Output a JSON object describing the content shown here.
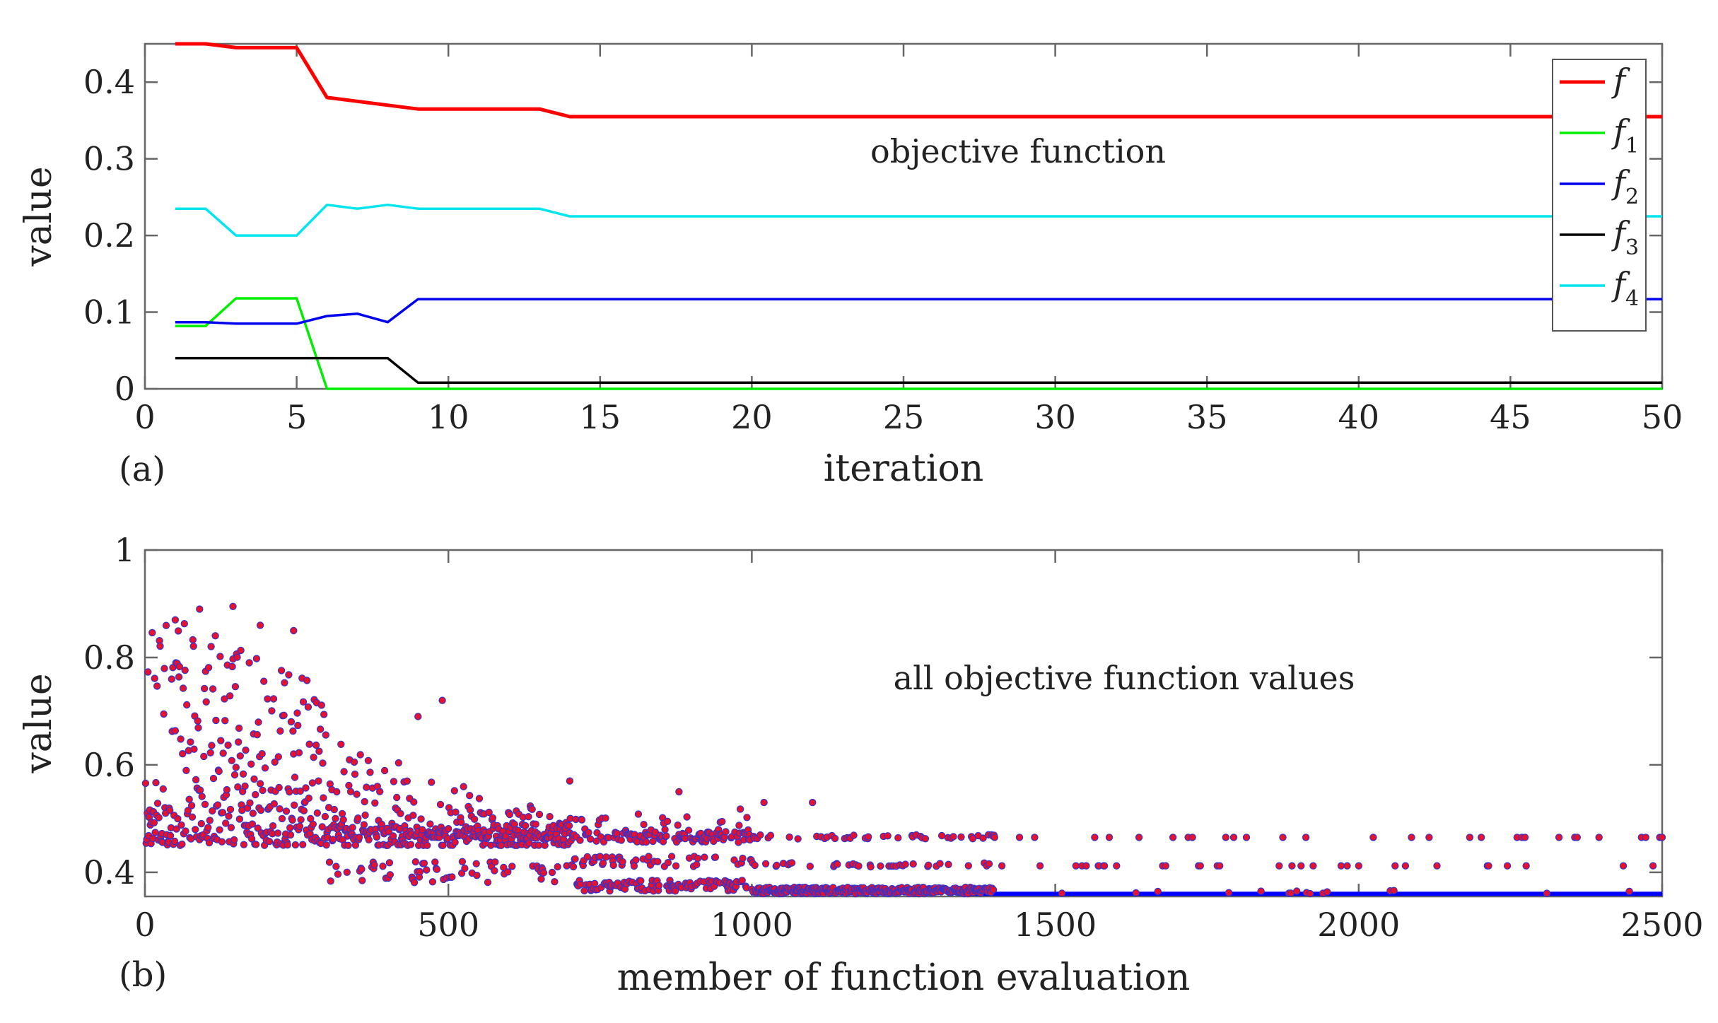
{
  "chart_data": [
    {
      "type": "line",
      "panel_label": "(a)",
      "title": "",
      "annotation": "objective function",
      "xlabel": "iteration",
      "ylabel": "value",
      "xlim": [
        0,
        50
      ],
      "ylim": [
        0,
        0.45
      ],
      "xticks": [
        0,
        5,
        10,
        15,
        20,
        25,
        30,
        35,
        40,
        45,
        50
      ],
      "xtick_labels": [
        "0",
        "5",
        "10",
        "15",
        "20",
        "25",
        "30",
        "35",
        "40",
        "45",
        "50"
      ],
      "yticks": [
        0,
        0.1,
        0.2,
        0.3,
        0.4
      ],
      "ytick_labels": [
        "0",
        "0.1",
        "0.2",
        "0.3",
        "0.4"
      ],
      "legend_position": "top-right",
      "series": [
        {
          "name": "f",
          "sub": "",
          "color": "#ff0000",
          "width": 5,
          "x": [
            1,
            2,
            3,
            4,
            5,
            6,
            7,
            8,
            9,
            10,
            11,
            12,
            13,
            14,
            50
          ],
          "y": [
            0.45,
            0.45,
            0.445,
            0.445,
            0.445,
            0.38,
            0.375,
            0.37,
            0.365,
            0.365,
            0.365,
            0.365,
            0.365,
            0.355,
            0.355
          ]
        },
        {
          "name": "f",
          "sub": "1",
          "color": "#00ee00",
          "width": 3.5,
          "x": [
            1,
            2,
            3,
            4,
            5,
            6,
            50
          ],
          "y": [
            0.082,
            0.082,
            0.118,
            0.118,
            0.118,
            0.0,
            0.0
          ]
        },
        {
          "name": "f",
          "sub": "2",
          "color": "#0000ee",
          "width": 3.5,
          "x": [
            1,
            2,
            3,
            4,
            5,
            6,
            7,
            8,
            9,
            50
          ],
          "y": [
            0.087,
            0.087,
            0.085,
            0.085,
            0.085,
            0.095,
            0.098,
            0.087,
            0.117,
            0.117
          ]
        },
        {
          "name": "f",
          "sub": "3",
          "color": "#000000",
          "width": 3.5,
          "x": [
            1,
            8,
            9,
            50
          ],
          "y": [
            0.04,
            0.04,
            0.008,
            0.008
          ]
        },
        {
          "name": "f",
          "sub": "4",
          "color": "#00e5ee",
          "width": 3.5,
          "x": [
            1,
            2,
            3,
            4,
            5,
            6,
            7,
            8,
            9,
            13,
            14,
            50
          ],
          "y": [
            0.235,
            0.235,
            0.2,
            0.2,
            0.2,
            0.24,
            0.235,
            0.24,
            0.235,
            0.235,
            0.225,
            0.225
          ]
        }
      ]
    },
    {
      "type": "scatter",
      "panel_label": "(b)",
      "title": "",
      "annotation": "all objective function values",
      "xlabel": "member of function evaluation",
      "ylabel": "value",
      "xlim": [
        0,
        2500
      ],
      "ylim": [
        0.355,
        1
      ],
      "xticks": [
        0,
        500,
        1000,
        1500,
        2000,
        2500
      ],
      "xtick_labels": [
        "0",
        "500",
        "1000",
        "1500",
        "2000",
        "2500"
      ],
      "yticks": [
        0.4,
        0.6,
        0.8,
        1
      ],
      "ytick_labels": [
        "0.4",
        "0.6",
        "0.8",
        "1"
      ],
      "marker_fill": "#e8112d",
      "marker_edge": "#3333cc",
      "approx_point_count": 2500,
      "floor_value": 0.36,
      "floor_color": "#0000ff",
      "generator": "synthetic approximation of 2500 evaluations: values decay from about 0.45-0.9 toward a floor near 0.36 with recurring bands near 0.41 and 0.47",
      "highlight_points": [
        {
          "x": 50,
          "y": 0.87
        },
        {
          "x": 90,
          "y": 0.89
        },
        {
          "x": 145,
          "y": 0.895
        },
        {
          "x": 190,
          "y": 0.86
        },
        {
          "x": 245,
          "y": 0.85
        },
        {
          "x": 450,
          "y": 0.69
        },
        {
          "x": 490,
          "y": 0.72
        },
        {
          "x": 700,
          "y": 0.57
        },
        {
          "x": 880,
          "y": 0.55
        },
        {
          "x": 1020,
          "y": 0.53
        },
        {
          "x": 1100,
          "y": 0.53
        },
        {
          "x": 2500,
          "y": 0.465
        }
      ]
    }
  ]
}
